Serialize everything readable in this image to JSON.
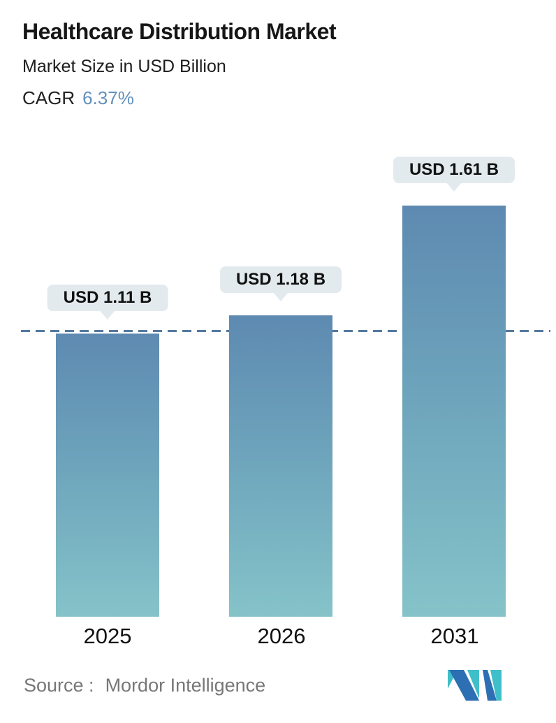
{
  "header": {
    "title": "Healthcare Distribution Market",
    "subtitle": "Market Size in USD Billion",
    "cagr_label": "CAGR",
    "cagr_value": "6.37%"
  },
  "chart_data": {
    "type": "bar",
    "categories": [
      "2025",
      "2026",
      "2031"
    ],
    "values": [
      1.11,
      1.18,
      1.61
    ],
    "value_labels": [
      "USD 1.11 B",
      "USD 1.18 B",
      "USD 1.61 B"
    ],
    "title": "Healthcare Distribution Market",
    "subtitle": "Market Size in USD Billion",
    "cagr": "6.37%",
    "xlabel": "",
    "ylabel": "",
    "ylim": [
      0,
      1.76
    ],
    "grid": false,
    "legend": "none",
    "reference_line": {
      "value": 1.11,
      "style": "dashed",
      "color": "#53799f"
    },
    "bar_gradient": {
      "top": "#5e8ab1",
      "bottom": "#85c3c9"
    },
    "label_badge_bg": "#e3eaee"
  },
  "footer": {
    "source_label": "Source :",
    "source_value": "Mordor Intelligence",
    "logo": "mordor-intelligence-logo"
  },
  "colors": {
    "accent_blue": "#6291bd",
    "text_dark": "#161616",
    "text_gray": "#777777",
    "dashed_line": "#53799f",
    "logo_blue": "#2d6fb3",
    "logo_teal": "#3fbfca"
  }
}
